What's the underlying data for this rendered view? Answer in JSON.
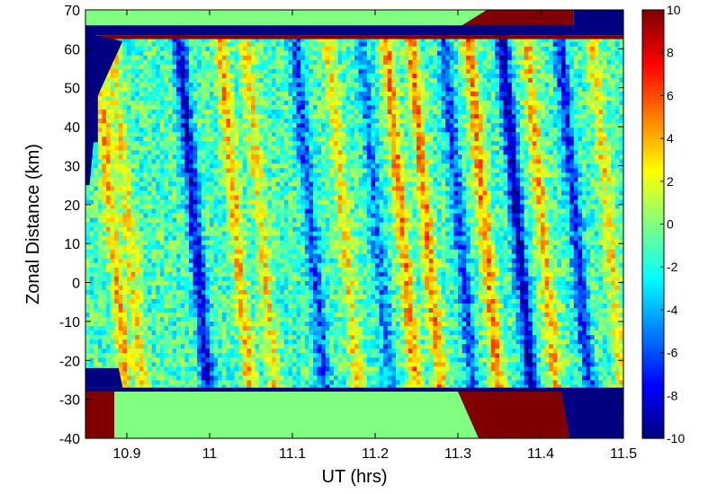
{
  "chart_data": {
    "type": "heatmap",
    "xlabel": "UT (hrs)",
    "ylabel": "Zonal Distance (km)",
    "xlim": [
      10.85,
      11.5
    ],
    "ylim": [
      -40,
      70
    ],
    "x_ticks": [
      10.9,
      11,
      11.1,
      11.2,
      11.3,
      11.4,
      11.5
    ],
    "x_tick_labels": [
      "10.9",
      "11",
      "11.1",
      "11.2",
      "11.3",
      "11.4",
      "11.5"
    ],
    "y_ticks": [
      -40,
      -30,
      -20,
      -10,
      0,
      10,
      20,
      30,
      40,
      50,
      60,
      70
    ],
    "y_tick_labels": [
      "-40",
      "-30",
      "-20",
      "-10",
      "0",
      "10",
      "20",
      "30",
      "40",
      "50",
      "60",
      "70"
    ],
    "colorbar": {
      "range": [
        -10,
        10
      ],
      "ticks": [
        -10,
        -8,
        -6,
        -4,
        -2,
        0,
        2,
        4,
        6,
        8,
        10
      ],
      "tick_labels": [
        "-10",
        "-8",
        "-6",
        "-4",
        "-2",
        "0",
        "2",
        "4",
        "6",
        "8",
        "10"
      ],
      "colormap": "jet"
    },
    "valid_region_y": [
      -28,
      64
    ],
    "stripes": [
      {
        "ut": 10.88,
        "value": 5
      },
      {
        "ut": 10.9,
        "value": 4
      },
      {
        "ut": 10.98,
        "value": -7
      },
      {
        "ut": 11.03,
        "value": 5
      },
      {
        "ut": 11.06,
        "value": 4
      },
      {
        "ut": 11.12,
        "value": -5
      },
      {
        "ut": 11.16,
        "value": 4
      },
      {
        "ut": 11.2,
        "value": -4
      },
      {
        "ut": 11.23,
        "value": 6
      },
      {
        "ut": 11.26,
        "value": 6
      },
      {
        "ut": 11.3,
        "value": -5
      },
      {
        "ut": 11.33,
        "value": 6
      },
      {
        "ut": 11.37,
        "value": -8
      },
      {
        "ut": 11.4,
        "value": 5
      },
      {
        "ut": 11.44,
        "value": -6
      },
      {
        "ut": 11.48,
        "value": 4
      }
    ]
  }
}
